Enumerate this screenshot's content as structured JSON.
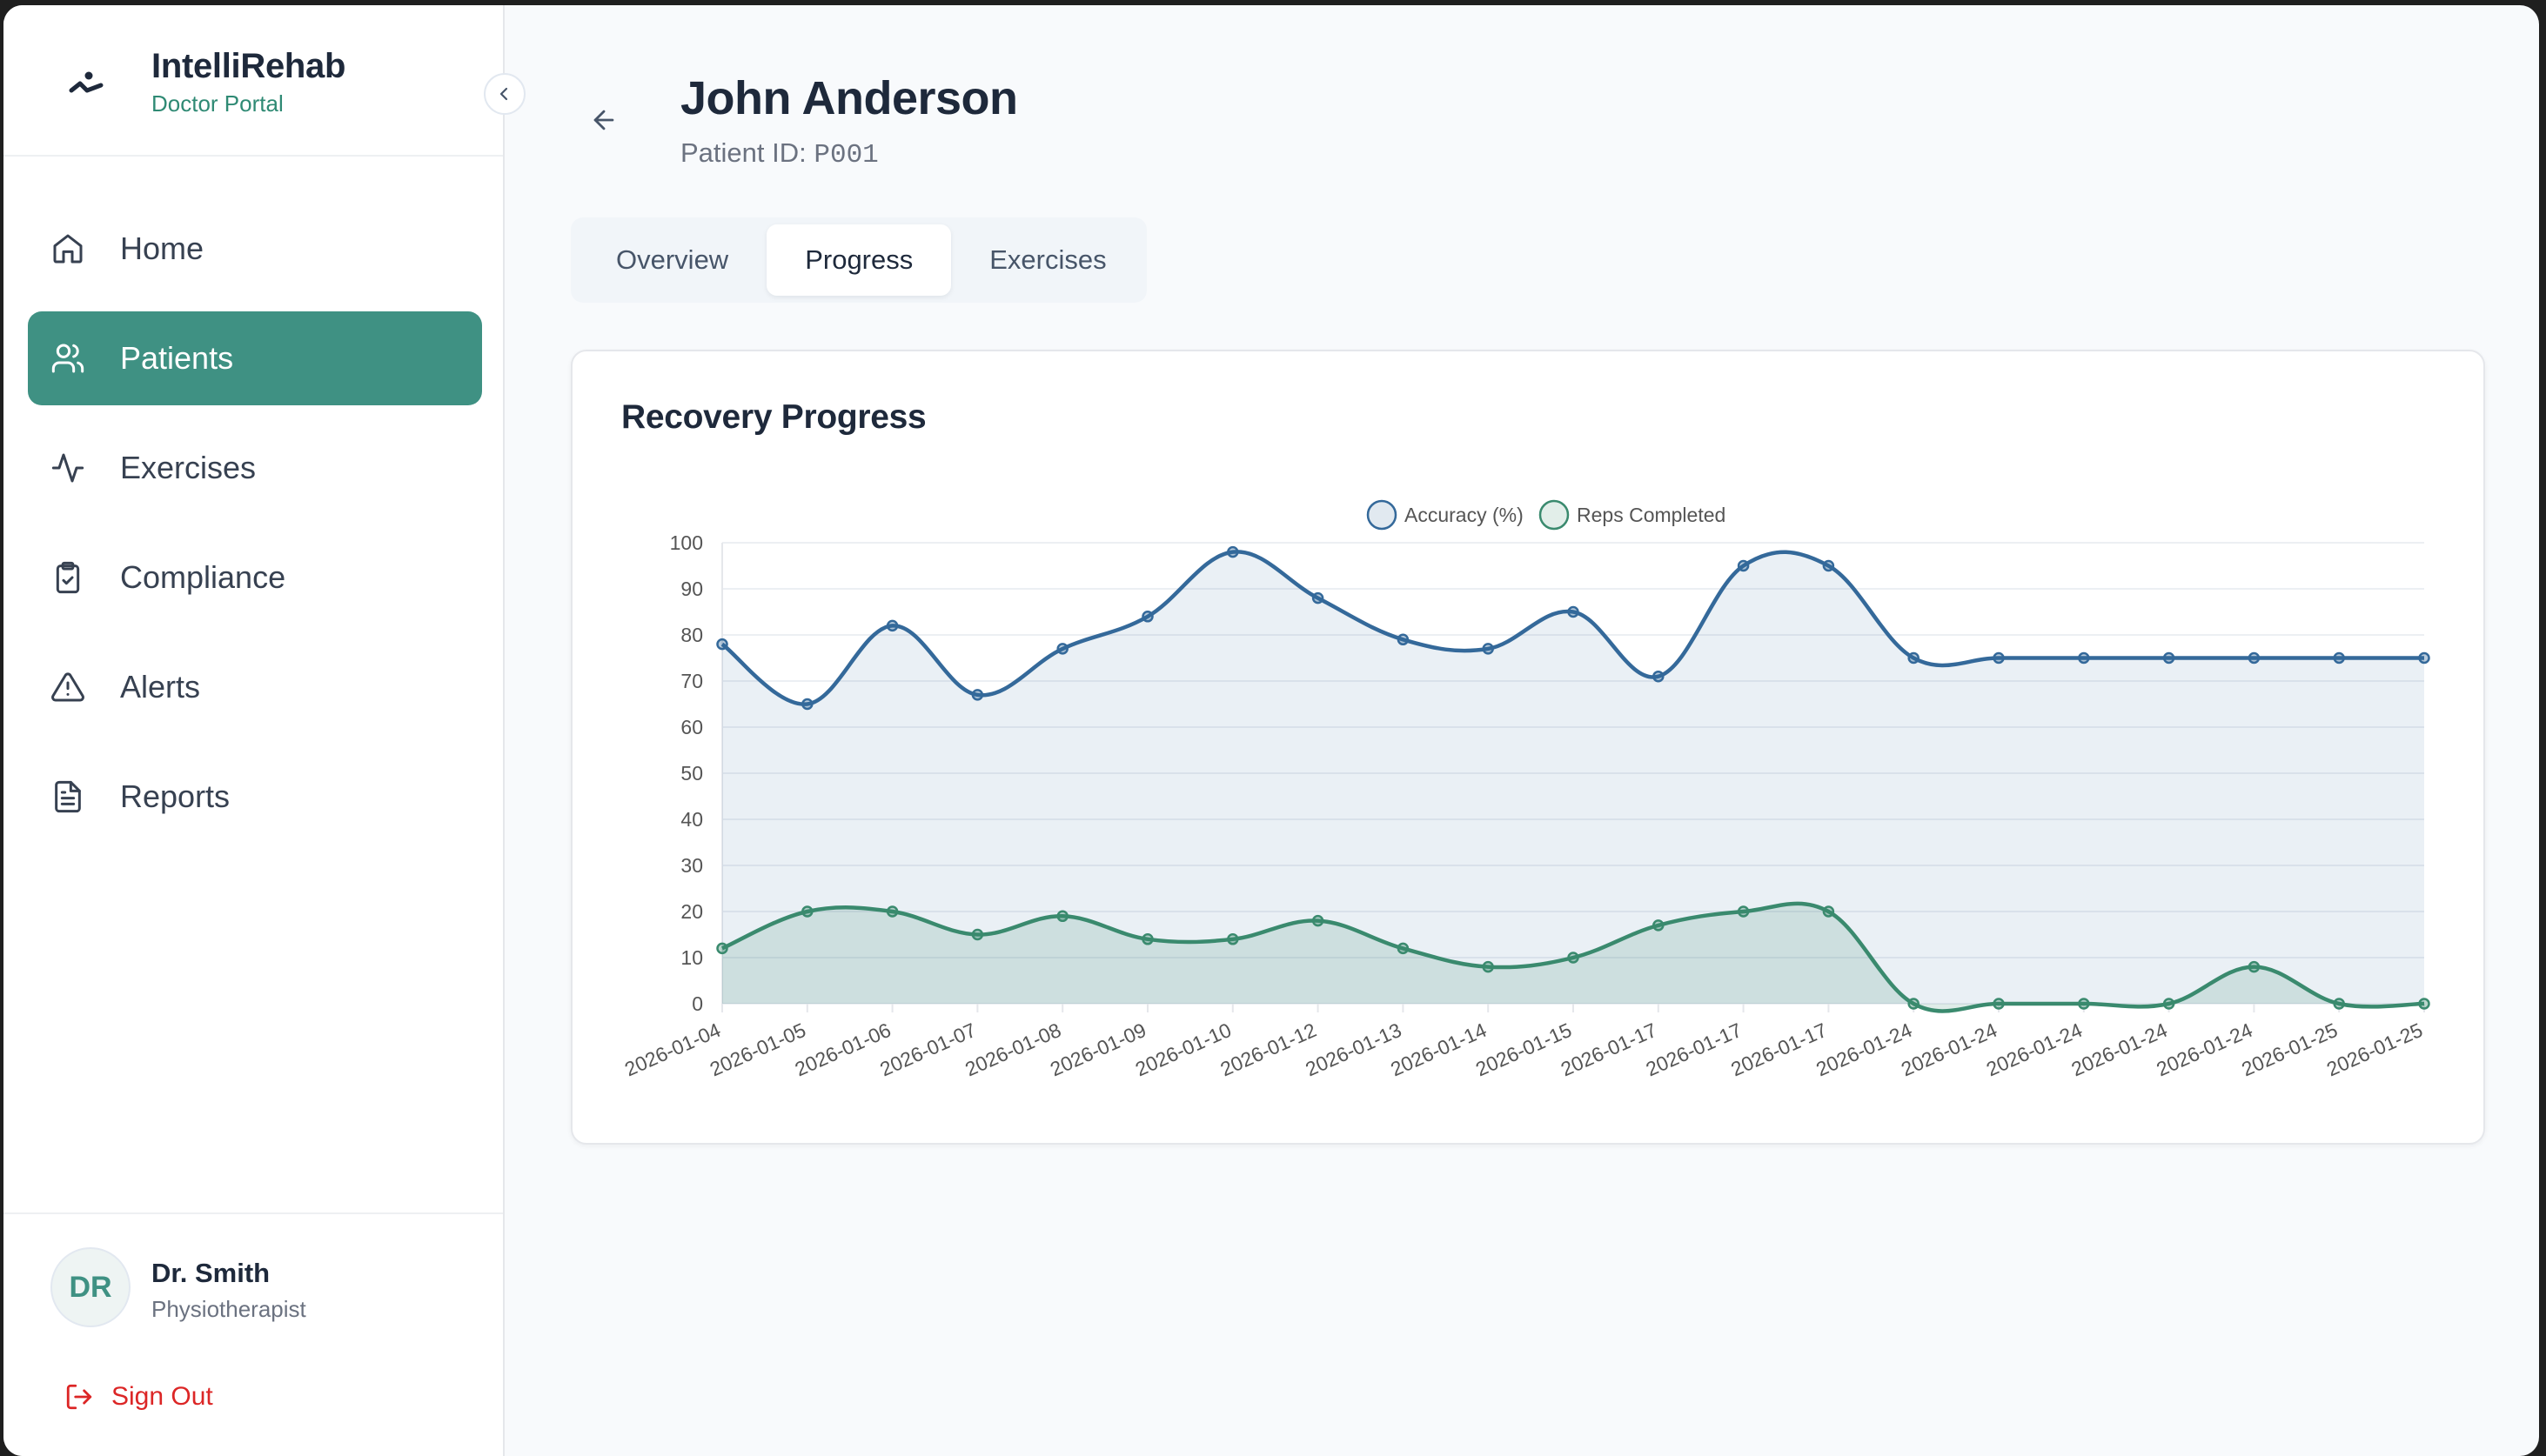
{
  "brand": {
    "title": "IntelliRehab",
    "subtitle": "Doctor Portal"
  },
  "nav": {
    "items": [
      {
        "label": "Home",
        "icon": "home-icon",
        "active": false
      },
      {
        "label": "Patients",
        "icon": "users-icon",
        "active": true
      },
      {
        "label": "Exercises",
        "icon": "activity-icon",
        "active": false
      },
      {
        "label": "Compliance",
        "icon": "clipboard-check-icon",
        "active": false
      },
      {
        "label": "Alerts",
        "icon": "alert-triangle-icon",
        "active": false
      },
      {
        "label": "Reports",
        "icon": "file-text-icon",
        "active": false
      }
    ]
  },
  "user": {
    "initials": "DR",
    "name": "Dr. Smith",
    "role": "Physiotherapist",
    "signout_label": "Sign Out"
  },
  "patient": {
    "name": "John Anderson",
    "id_label": "Patient ID:",
    "id": "P001"
  },
  "tabs": [
    {
      "label": "Overview",
      "active": false
    },
    {
      "label": "Progress",
      "active": true
    },
    {
      "label": "Exercises",
      "active": false
    }
  ],
  "card": {
    "title": "Recovery Progress"
  },
  "colors": {
    "accent": "#3f9183",
    "accuracy": "#34699a",
    "reps": "#3a8a6e",
    "danger": "#dc2626"
  },
  "chart_data": {
    "type": "line",
    "title": "Recovery Progress",
    "xlabel": "",
    "ylabel": "",
    "ylim": [
      0,
      100
    ],
    "yticks": [
      0,
      10,
      20,
      30,
      40,
      50,
      60,
      70,
      80,
      90,
      100
    ],
    "grid": true,
    "legend": "top-center",
    "x": [
      "2026-01-04",
      "2026-01-05",
      "2026-01-06",
      "2026-01-07",
      "2026-01-08",
      "2026-01-09",
      "2026-01-10",
      "2026-01-12",
      "2026-01-13",
      "2026-01-14",
      "2026-01-15",
      "2026-01-17",
      "2026-01-17",
      "2026-01-17",
      "2026-01-24",
      "2026-01-24",
      "2026-01-24",
      "2026-01-24",
      "2026-01-24",
      "2026-01-25",
      "2026-01-25"
    ],
    "series": [
      {
        "name": "Accuracy (%)",
        "color": "#34699a",
        "fill": "rgba(52,105,154,0.10)",
        "values": [
          78,
          65,
          82,
          67,
          77,
          84,
          98,
          88,
          79,
          77,
          85,
          71,
          95,
          95,
          75,
          75,
          75,
          75,
          75,
          75,
          75
        ]
      },
      {
        "name": "Reps Completed",
        "color": "#3a8a6e",
        "fill": "rgba(58,138,110,0.16)",
        "values": [
          12,
          20,
          20,
          15,
          19,
          14,
          14,
          18,
          12,
          8,
          10,
          17,
          20,
          20,
          0,
          0,
          0,
          0,
          8,
          0,
          0
        ]
      }
    ]
  }
}
